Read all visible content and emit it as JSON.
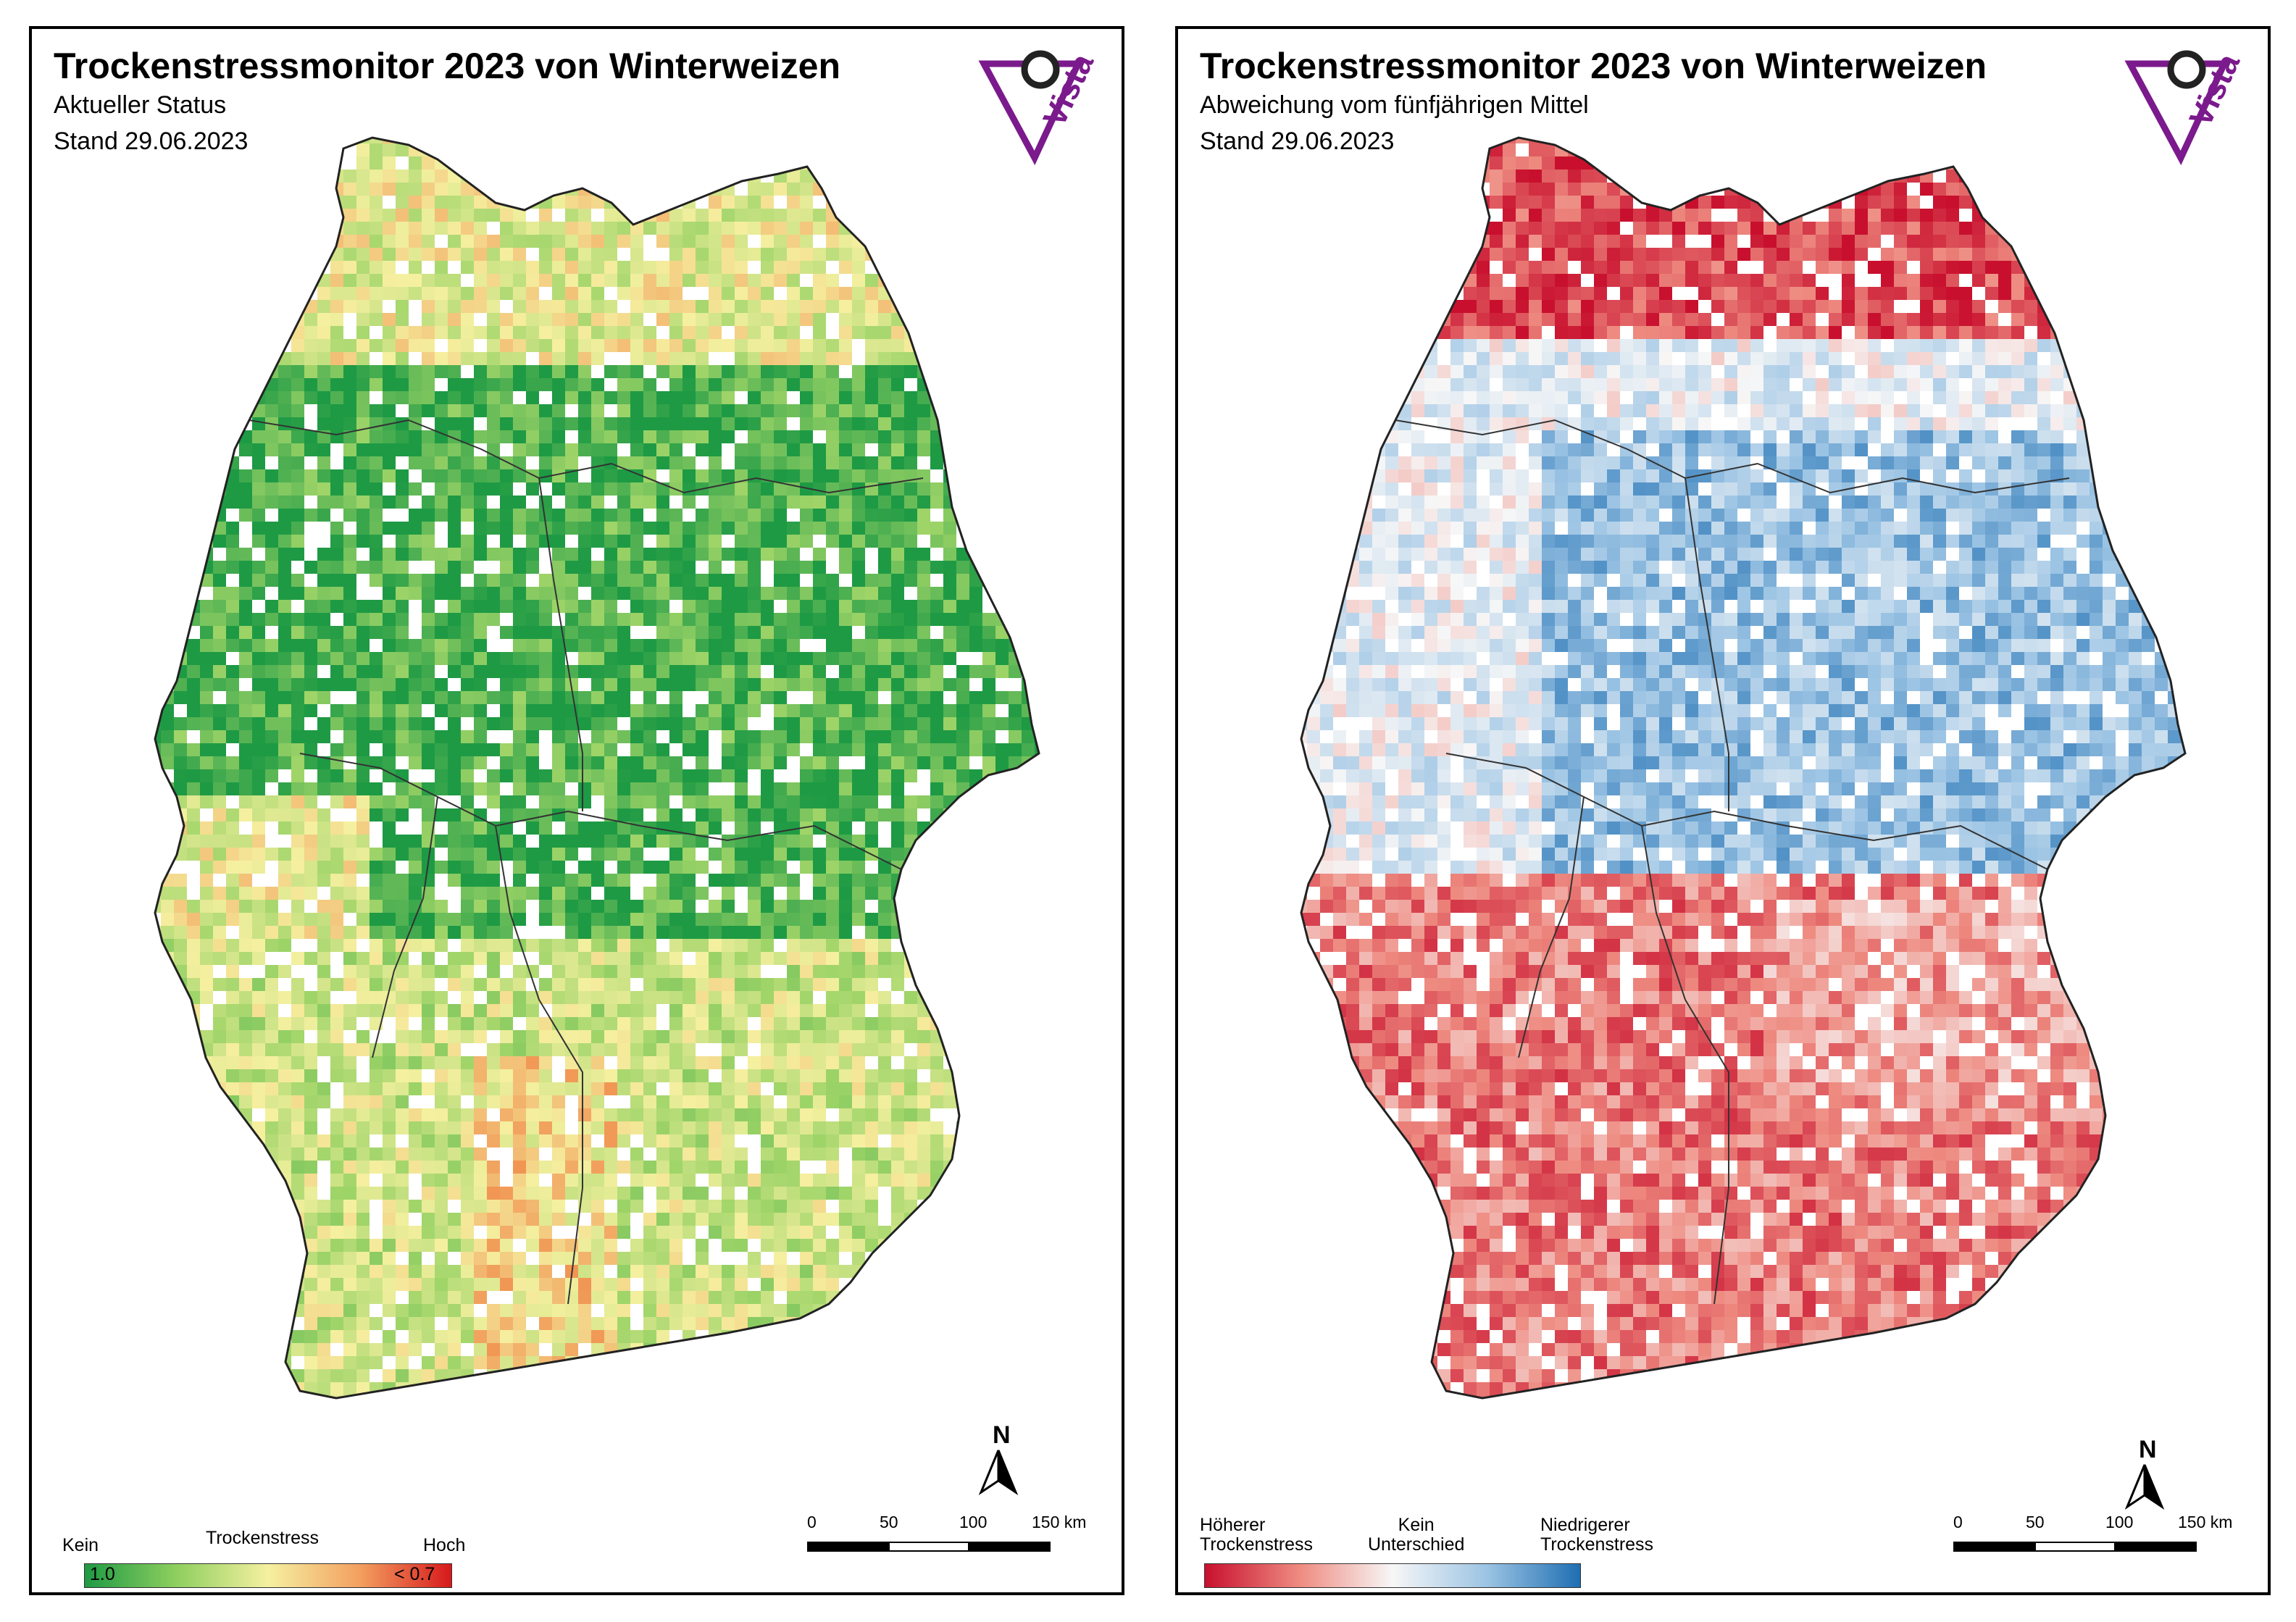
{
  "colors": {
    "stress_green": "#1e9a44",
    "stress_lightgreen": "#9ed468",
    "stress_yellow": "#f5f0a0",
    "stress_orange": "#f08a4a",
    "stress_red": "#d7191c",
    "dev_red": "#c8102e",
    "dev_white": "#f7f7f7",
    "dev_blue": "#1f6fb2",
    "logo_purple": "#7b1a8c"
  },
  "logo": {
    "text": "Vista"
  },
  "scalebar": {
    "ticks": [
      "0",
      "50",
      "100",
      "150 km"
    ]
  },
  "north_label": "N",
  "left": {
    "title": "Trockenstressmonitor 2023 von Winterweizen",
    "subtitle": "Aktueller Status",
    "date": "Stand 29.06.2023",
    "legend": {
      "title": "Trockenstress",
      "low": "Kein",
      "high": "Hoch",
      "min_value": "1.0",
      "max_value": "< 0.7"
    }
  },
  "right": {
    "title": "Trockenstressmonitor 2023 von Winterweizen",
    "subtitle": "Abweichung vom fünfjährigen Mittel",
    "date": "Stand 29.06.2023",
    "legend": {
      "left_label": "Höherer\nTrockenstress",
      "mid_label": "Kein\nUnterschied",
      "right_label": "Niedrigerer\nTrockenstress"
    }
  }
}
